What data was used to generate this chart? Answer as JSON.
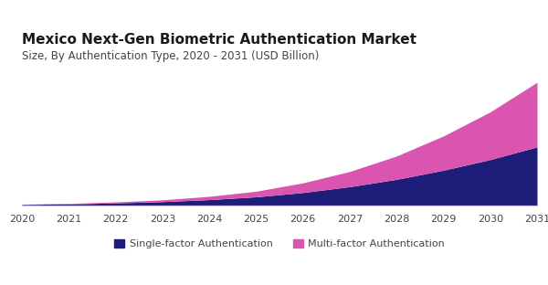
{
  "title": "Mexico Next-Gen Biometric Authentication Market",
  "subtitle": "Size, By Authentication Type, 2020 - 2031 (USD Billion)",
  "years": [
    2020,
    2021,
    2022,
    2023,
    2024,
    2025,
    2026,
    2027,
    2028,
    2029,
    2030,
    2031
  ],
  "single_factor": [
    0.03,
    0.05,
    0.09,
    0.14,
    0.22,
    0.33,
    0.5,
    0.73,
    1.02,
    1.38,
    1.8,
    2.3
  ],
  "multi_factor": [
    0.01,
    0.02,
    0.04,
    0.07,
    0.13,
    0.22,
    0.38,
    0.6,
    0.92,
    1.35,
    1.88,
    2.55
  ],
  "single_color": "#1e1e7a",
  "multi_color": "#d955b0",
  "background_color": "#ffffff",
  "border_color": "#cccccc",
  "title_fontsize": 11,
  "subtitle_fontsize": 8.5,
  "legend_fontsize": 8,
  "tick_fontsize": 8,
  "title_color": "#1a1a1a",
  "subtitle_color": "#444444",
  "tick_color": "#444444"
}
